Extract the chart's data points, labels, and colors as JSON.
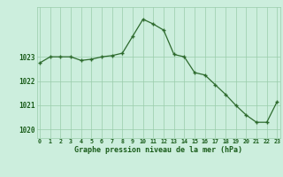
{
  "x": [
    0,
    1,
    2,
    3,
    4,
    5,
    6,
    7,
    8,
    9,
    10,
    11,
    12,
    13,
    14,
    15,
    16,
    17,
    18,
    19,
    20,
    21,
    22,
    23
  ],
  "y": [
    1022.75,
    1023.0,
    1023.0,
    1023.0,
    1022.85,
    1022.9,
    1023.0,
    1023.05,
    1023.15,
    1023.85,
    1024.55,
    1024.35,
    1024.1,
    1023.1,
    1023.0,
    1022.35,
    1022.25,
    1021.85,
    1021.45,
    1021.0,
    1020.6,
    1020.3,
    1020.3,
    1021.15
  ],
  "line_color": "#2d6a2d",
  "marker_color": "#2d6a2d",
  "bg_color": "#cceedd",
  "grid_color": "#99ccaa",
  "ylabel_ticks": [
    1020,
    1021,
    1022,
    1023
  ],
  "ylim": [
    1019.65,
    1025.05
  ],
  "xlim": [
    -0.3,
    23.3
  ],
  "xlabel": "Graphe pression niveau de la mer (hPa)",
  "xlabel_color": "#1a5c1a",
  "figsize": [
    3.2,
    2.0
  ],
  "dpi": 100
}
